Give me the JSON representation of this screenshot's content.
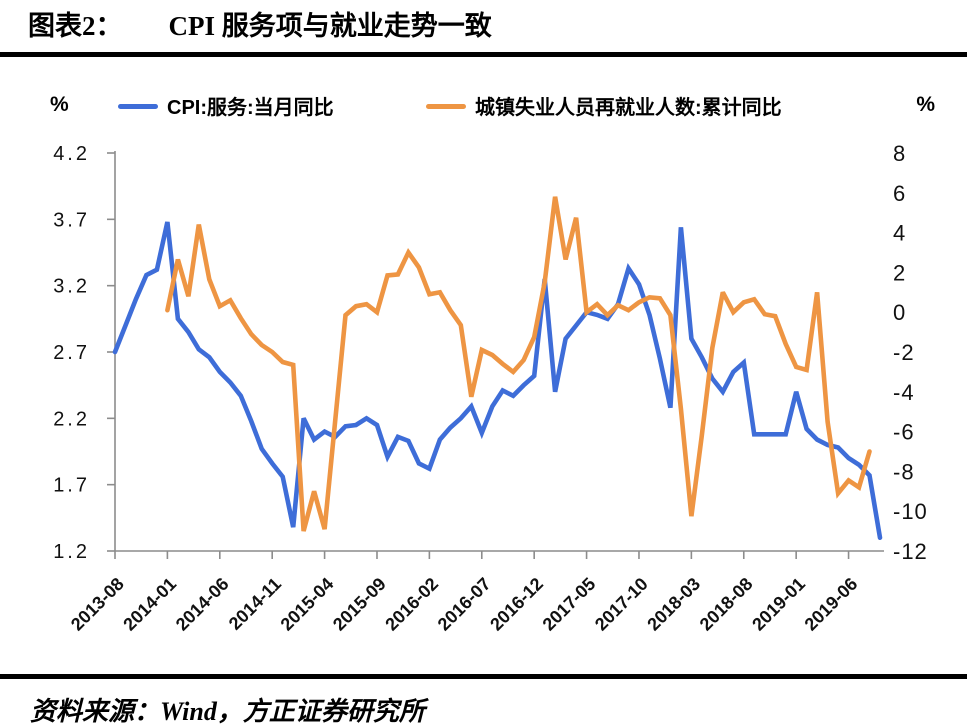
{
  "header": {
    "title_prefix": "图表2：",
    "title_text": "CPI 服务项与就业走势一致"
  },
  "legend": [
    {
      "label": "CPI:服务:当月同比",
      "color": "#3e6dd8"
    },
    {
      "label": "城镇失业人员再就业人数:累计同比",
      "color": "#ee9543"
    }
  ],
  "axes": {
    "unit_left": "%",
    "unit_right": "%"
  },
  "footer": {
    "source": "资料来源：Wind，方正证券研究所"
  },
  "chart_data": {
    "type": "line",
    "title": "CPI 服务项与就业走势一致",
    "grid": false,
    "legend_position": "top",
    "x": [
      "2013-08",
      "2013-09",
      "2013-10",
      "2013-11",
      "2013-12",
      "2014-01",
      "2014-02",
      "2014-03",
      "2014-04",
      "2014-05",
      "2014-06",
      "2014-07",
      "2014-08",
      "2014-09",
      "2014-10",
      "2014-11",
      "2014-12",
      "2015-01",
      "2015-02",
      "2015-03",
      "2015-04",
      "2015-05",
      "2015-06",
      "2015-07",
      "2015-08",
      "2015-09",
      "2015-10",
      "2015-11",
      "2015-12",
      "2016-01",
      "2016-02",
      "2016-03",
      "2016-04",
      "2016-05",
      "2016-06",
      "2016-07",
      "2016-08",
      "2016-09",
      "2016-10",
      "2016-11",
      "2016-12",
      "2017-01",
      "2017-02",
      "2017-03",
      "2017-04",
      "2017-05",
      "2017-06",
      "2017-07",
      "2017-08",
      "2017-09",
      "2017-10",
      "2017-11",
      "2017-12",
      "2018-01",
      "2018-02",
      "2018-03",
      "2018-04",
      "2018-05",
      "2018-06",
      "2018-07",
      "2018-08",
      "2018-09",
      "2018-10",
      "2018-11",
      "2018-12",
      "2019-01",
      "2019-02",
      "2019-03",
      "2019-04",
      "2019-05",
      "2019-06",
      "2019-07",
      "2019-08",
      "2019-09"
    ],
    "x_tick_labels": [
      "2013-08",
      "2014-01",
      "2014-06",
      "2014-11",
      "2015-04",
      "2015-09",
      "2016-02",
      "2016-07",
      "2016-12",
      "2017-05",
      "2017-10",
      "2018-03",
      "2018-08",
      "2019-01",
      "2019-06"
    ],
    "left_axis": {
      "unit": "%",
      "min": 1.2,
      "max": 4.2,
      "ticks": [
        4.2,
        3.7,
        3.2,
        2.7,
        2.2,
        1.7,
        1.2
      ]
    },
    "right_axis": {
      "unit": "%",
      "min": -12,
      "max": 8,
      "ticks": [
        8,
        6,
        4,
        2,
        0,
        -2,
        -4,
        -6,
        -8,
        -10,
        -12
      ]
    },
    "series": [
      {
        "key": "cpi-services-line",
        "name": "CPI:服务:当月同比",
        "axis": "left",
        "color": "#3e6dd8",
        "values": [
          2.7,
          2.9,
          3.1,
          3.28,
          3.32,
          3.68,
          2.95,
          2.85,
          2.72,
          2.66,
          2.55,
          2.47,
          2.37,
          2.18,
          1.97,
          1.86,
          1.76,
          1.38,
          2.2,
          2.04,
          2.1,
          2.06,
          2.14,
          2.15,
          2.2,
          2.15,
          1.91,
          2.06,
          2.03,
          1.86,
          1.82,
          2.04,
          2.13,
          2.2,
          2.29,
          2.09,
          2.29,
          2.41,
          2.37,
          2.45,
          2.52,
          3.25,
          2.4,
          2.8,
          2.9,
          3.0,
          2.98,
          2.95,
          3.06,
          3.33,
          3.21,
          2.98,
          2.65,
          2.28,
          3.64,
          2.8,
          2.66,
          2.5,
          2.4,
          2.55,
          2.62,
          2.08,
          2.08,
          2.08,
          2.08,
          2.4,
          2.12,
          2.04,
          2.0,
          1.98,
          1.9,
          1.85,
          1.77,
          1.3
        ]
      },
      {
        "key": "reemployment-line",
        "name": "城镇失业人员再就业人数:累计同比",
        "axis": "right",
        "color": "#ee9543",
        "values": [
          null,
          null,
          null,
          null,
          null,
          0.1,
          2.65,
          0.8,
          4.4,
          1.65,
          0.3,
          0.6,
          -0.3,
          -1.1,
          -1.65,
          -2.0,
          -2.5,
          -2.65,
          -11.0,
          -9.0,
          -10.9,
          -5.5,
          -0.15,
          0.3,
          0.4,
          0.0,
          1.85,
          1.9,
          3.0,
          2.25,
          0.9,
          1.0,
          0.1,
          -0.65,
          -4.25,
          -1.9,
          -2.15,
          -2.6,
          -3.0,
          -2.4,
          -1.25,
          1.5,
          5.8,
          2.65,
          4.75,
          0.0,
          0.4,
          -0.15,
          0.35,
          0.1,
          0.5,
          0.75,
          0.7,
          -0.15,
          -4.85,
          -10.25,
          -6.2,
          -1.8,
          1.0,
          0.0,
          0.5,
          0.65,
          -0.1,
          -0.2,
          -1.6,
          -2.75,
          -2.9,
          1.0,
          -5.5,
          -9.1,
          -8.45,
          -8.8,
          -7.0,
          null
        ]
      }
    ]
  }
}
